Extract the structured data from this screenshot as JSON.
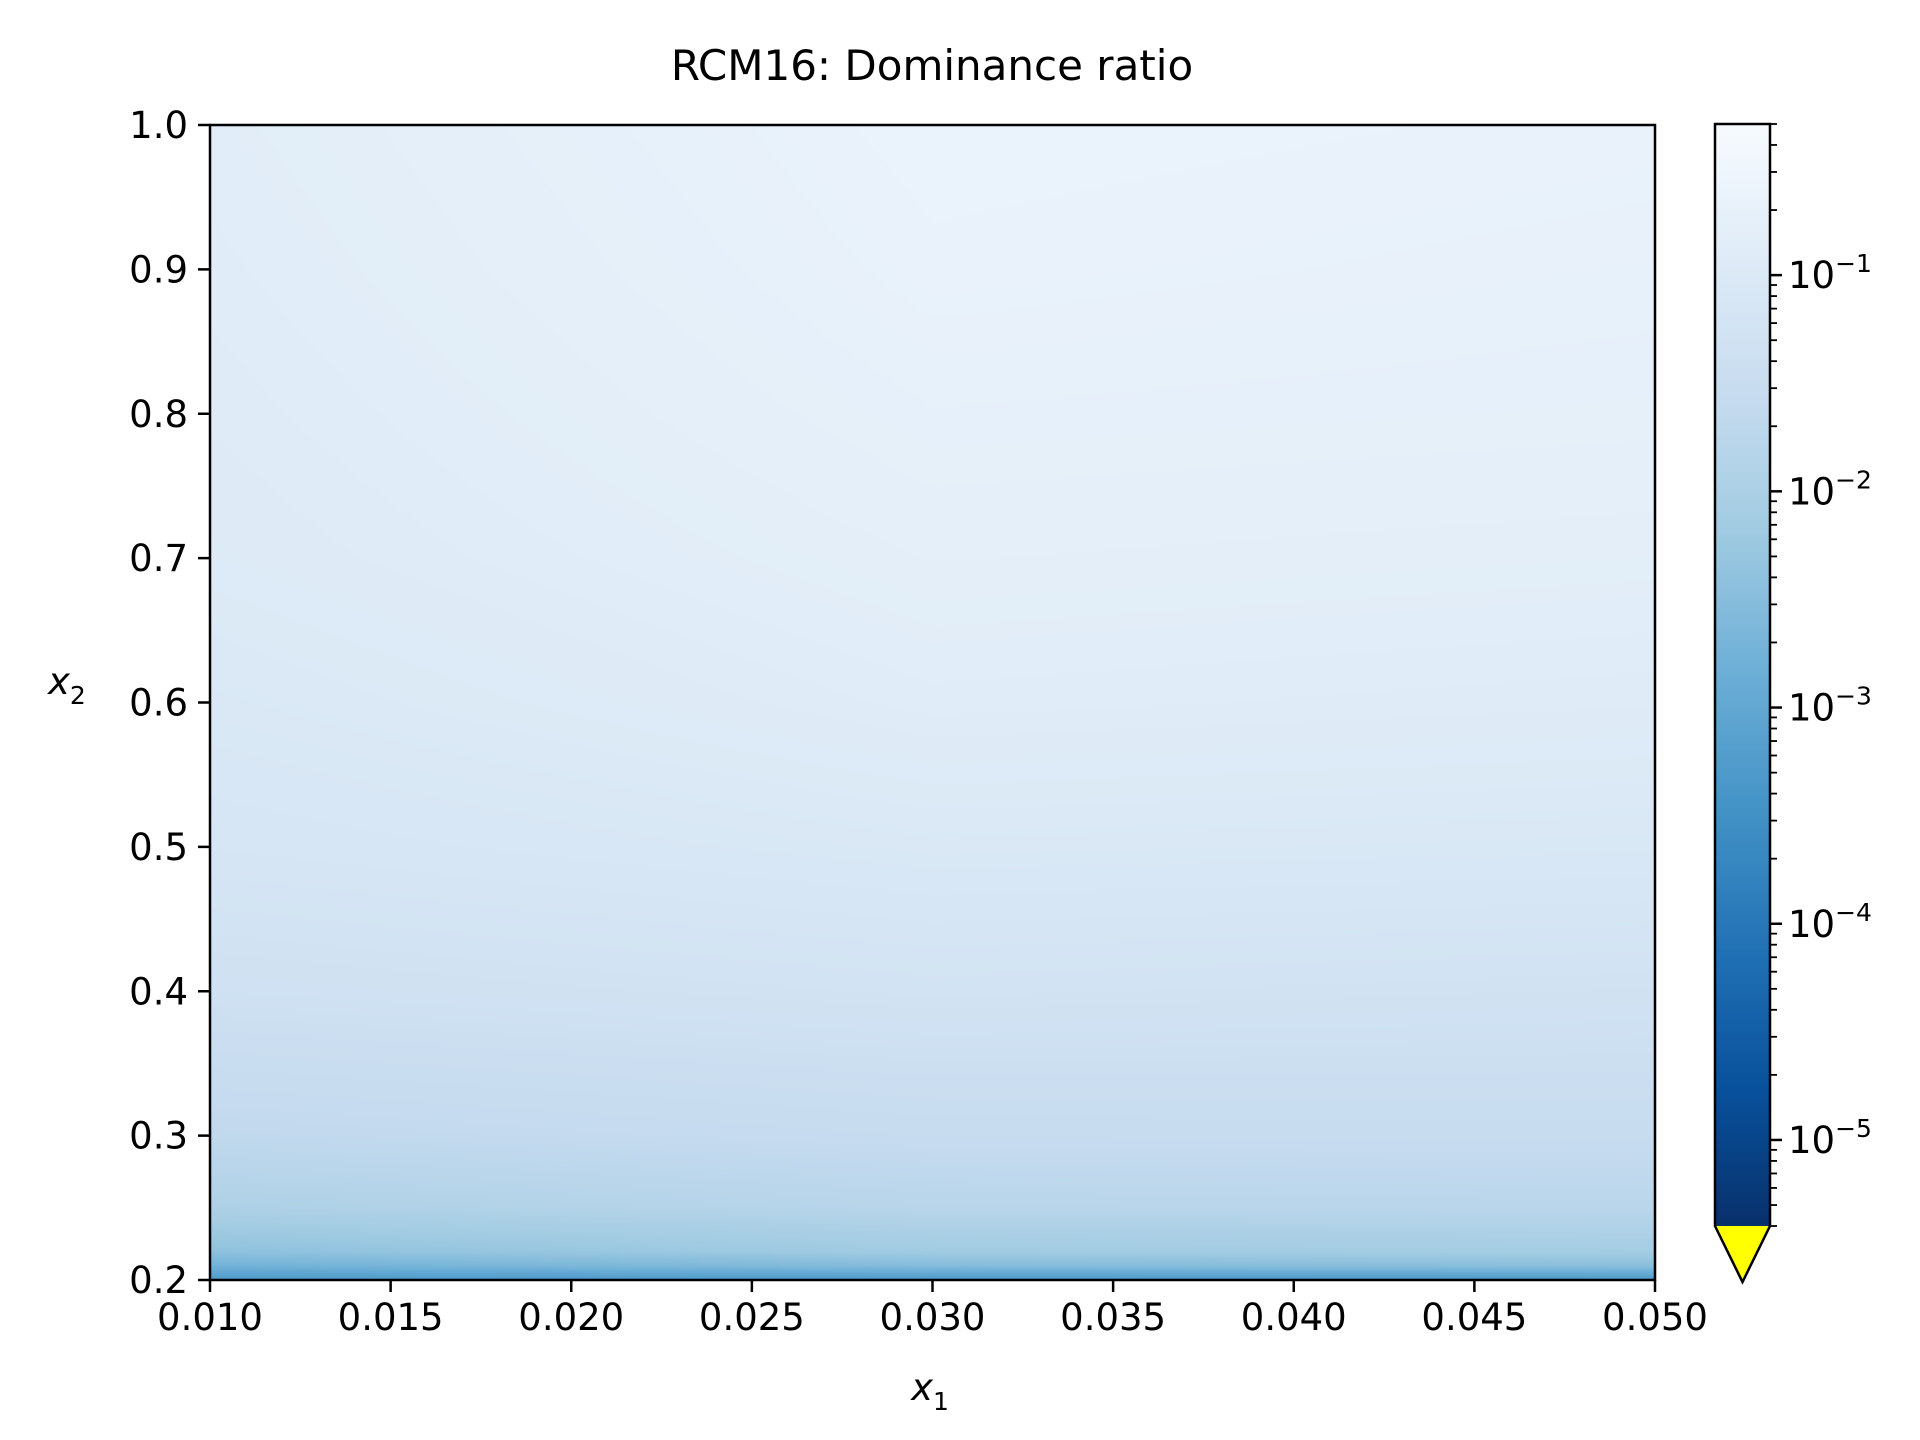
{
  "chart_data": {
    "type": "heatmap",
    "title": "RCM16: Dominance ratio",
    "xlabel": {
      "main": "x",
      "sub": "1"
    },
    "ylabel": {
      "main": "x",
      "sub": "2"
    },
    "xlim": [
      0.01,
      0.05
    ],
    "ylim": [
      0.2,
      1.0
    ],
    "x_ticks": [
      "0.010",
      "0.015",
      "0.020",
      "0.025",
      "0.030",
      "0.035",
      "0.040",
      "0.045",
      "0.050"
    ],
    "y_ticks": [
      "0.2",
      "0.3",
      "0.4",
      "0.5",
      "0.6",
      "0.7",
      "0.8",
      "0.9",
      "1.0"
    ],
    "colormap": "Blues",
    "colorbar": {
      "scale": "log",
      "range": [
        4e-06,
        0.5
      ],
      "extend": "min",
      "under_color": "#ffff00",
      "ticks": [
        {
          "value": 1e-05,
          "base": "10",
          "exp": "−5"
        },
        {
          "value": 0.0001,
          "base": "10",
          "exp": "−4"
        },
        {
          "value": 0.001,
          "base": "10",
          "exp": "−3"
        },
        {
          "value": 0.01,
          "base": "10",
          "exp": "−2"
        },
        {
          "value": 0.1,
          "base": "10",
          "exp": "−1"
        }
      ]
    },
    "profile": {
      "x": [
        0.01,
        0.03,
        0.05
      ],
      "y": [
        0.2,
        0.21,
        0.22,
        0.25,
        0.3,
        0.4,
        0.5,
        0.6,
        0.7,
        0.8,
        0.9,
        1.0
      ],
      "values": [
        [
          0.0005,
          0.0005,
          0.0005
        ],
        [
          0.0018,
          0.003,
          0.0035
        ],
        [
          0.004,
          0.007,
          0.008
        ],
        [
          0.011,
          0.016,
          0.017
        ],
        [
          0.022,
          0.028,
          0.029
        ],
        [
          0.045,
          0.055,
          0.05
        ],
        [
          0.07,
          0.09,
          0.085
        ],
        [
          0.09,
          0.13,
          0.12
        ],
        [
          0.11,
          0.16,
          0.15
        ],
        [
          0.12,
          0.19,
          0.18
        ],
        [
          0.13,
          0.22,
          0.2
        ],
        [
          0.14,
          0.24,
          0.22
        ]
      ]
    },
    "grid": false
  }
}
